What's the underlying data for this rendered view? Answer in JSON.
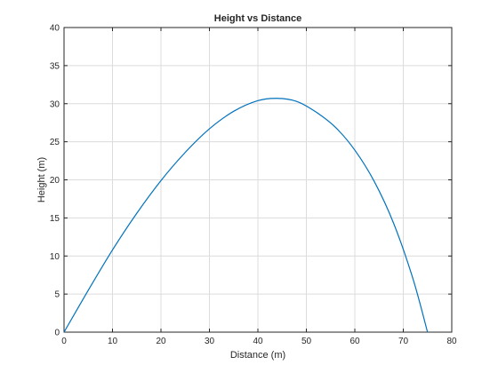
{
  "chart_data": {
    "type": "line",
    "title": "Height vs Distance",
    "xlabel": "Distance (m)",
    "ylabel": "Height (m)",
    "xlim": [
      0,
      80
    ],
    "ylim": [
      0,
      40
    ],
    "xticks": [
      0,
      10,
      20,
      30,
      40,
      50,
      60,
      70,
      80
    ],
    "yticks": [
      0,
      5,
      10,
      15,
      20,
      25,
      30,
      35,
      40
    ],
    "grid": true,
    "line_color": "#0072BD",
    "series": [
      {
        "x": [
          0,
          5,
          10,
          15,
          20,
          25,
          30,
          35,
          40,
          44,
          48,
          52,
          56,
          60,
          64,
          68,
          72,
          75
        ],
        "y": [
          0,
          5.5,
          10.8,
          15.6,
          19.9,
          23.6,
          26.7,
          29.0,
          30.4,
          30.7,
          30.3,
          28.9,
          26.9,
          23.9,
          19.8,
          14.3,
          7.0,
          0
        ]
      }
    ]
  }
}
